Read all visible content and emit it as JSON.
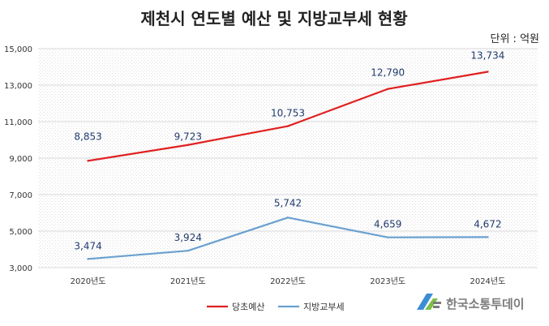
{
  "chart_data": {
    "type": "line",
    "title": "제천시 연도별 예산 및 지방교부세 현황",
    "unit_label": "단위 : 억원",
    "categories": [
      "2020년도",
      "2021년도",
      "2022년도",
      "2023년도",
      "2024년도"
    ],
    "series": [
      {
        "name": "당초예산",
        "color": "#e02020",
        "values": [
          8853,
          9723,
          10753,
          12790,
          13734
        ],
        "labels": [
          "8,853",
          "9,723",
          "10,753",
          "12,790",
          "13,734"
        ]
      },
      {
        "name": "지방교부세",
        "color": "#6aa0cf",
        "values": [
          3474,
          3924,
          5742,
          4659,
          4672
        ],
        "labels": [
          "3,474",
          "3,924",
          "5,742",
          "4,659",
          "4,672"
        ]
      }
    ],
    "ylim": [
      3000,
      15000
    ],
    "yticks": [
      3000,
      5000,
      7000,
      9000,
      11000,
      13000,
      15000
    ],
    "ytick_labels": [
      "3,000",
      "5,000",
      "7,000",
      "9,000",
      "11,000",
      "13,000",
      "15,000"
    ],
    "grid": true,
    "legend_position": "bottom"
  },
  "watermark": {
    "text": "한국소통투데이",
    "color": "#7a7a7a"
  }
}
